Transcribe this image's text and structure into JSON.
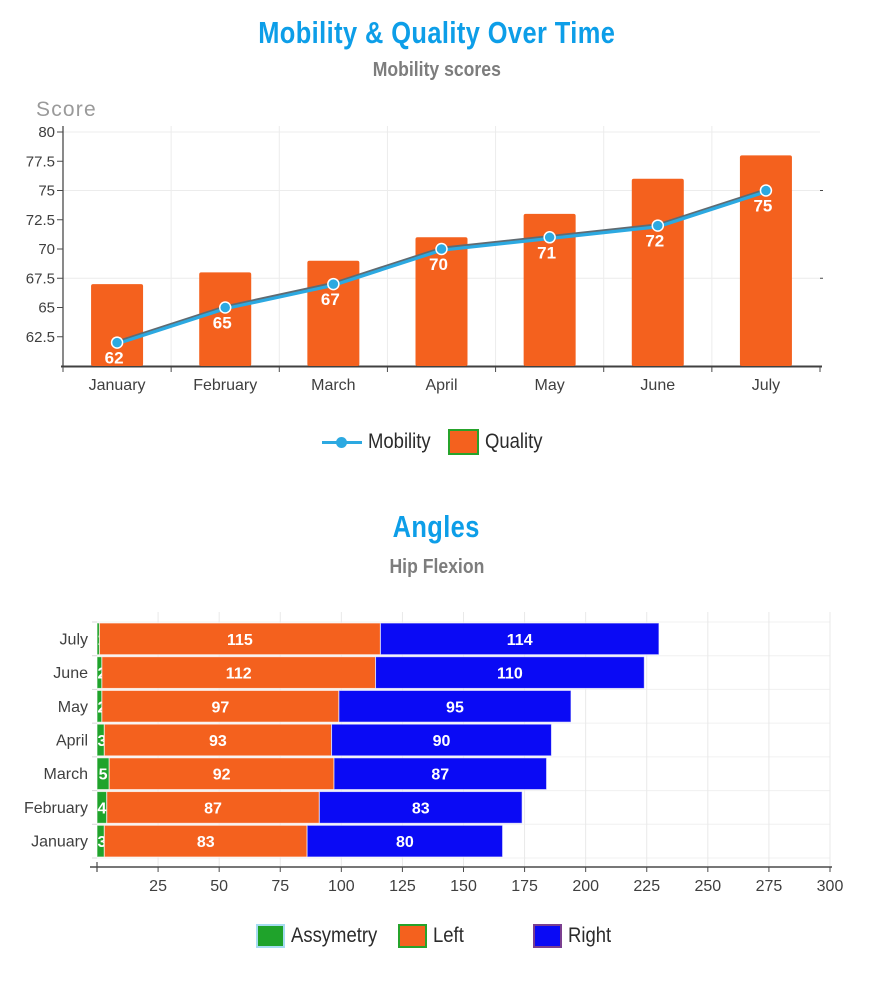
{
  "colors": {
    "title_blue": "#0D9EE8",
    "subtitle_gray": "#7d7d7d",
    "orange": "#F4611E",
    "line_blue": "#2CA9E1",
    "line_echo": "#5f6b72",
    "bar_blue": "#0A0AF5",
    "green": "#1FA32B",
    "axis_text": "#3f3f3f",
    "axis_line": "#4a4a4a",
    "grid": "#ececec",
    "value_label": "#ffffff",
    "score_label": "#9a9a9a",
    "legend_text": "#2b2b2b",
    "assym_swatch_border": "#a6dcf1",
    "left_swatch_border": "#26a32b",
    "right_swatch_border": "#7b3f8f"
  },
  "chart_data": [
    {
      "type": "bar+line",
      "title": "Mobility & Quality Over Time",
      "subtitle": "Mobility scores",
      "ylabel": "Score",
      "categories": [
        "January",
        "February",
        "March",
        "April",
        "May",
        "June",
        "July"
      ],
      "y_ticks": [
        80,
        77.5,
        75,
        72.5,
        70,
        67.5,
        65,
        62.5
      ],
      "ylim": [
        60,
        80
      ],
      "grid_y_values": [
        80,
        75,
        67.5
      ],
      "grid": "on",
      "legend_position": "bottom",
      "series": [
        {
          "name": "Mobility",
          "type": "line",
          "values": [
            62,
            65,
            67,
            70,
            71,
            72,
            75
          ],
          "point_labels": true
        },
        {
          "name": "Quality",
          "type": "bar",
          "values": [
            67,
            68,
            69,
            71,
            73,
            76,
            78
          ]
        }
      ]
    },
    {
      "type": "stacked-horizontal-bar",
      "title": "Angles",
      "subtitle": "Hip Flexion",
      "categories": [
        "July",
        "June",
        "May",
        "April",
        "March",
        "February",
        "January"
      ],
      "x_ticks": [
        25,
        50,
        75,
        100,
        125,
        150,
        175,
        200,
        225,
        250,
        275,
        300
      ],
      "xlim": [
        0,
        300
      ],
      "grid": "on",
      "legend_position": "bottom",
      "series": [
        {
          "name": "Assymetry",
          "values": [
            1,
            2,
            2,
            3,
            5,
            4,
            3
          ]
        },
        {
          "name": "Left",
          "values": [
            115,
            112,
            97,
            93,
            92,
            87,
            83
          ]
        },
        {
          "name": "Right",
          "values": [
            114,
            110,
            95,
            90,
            87,
            83,
            80
          ]
        }
      ]
    }
  ]
}
